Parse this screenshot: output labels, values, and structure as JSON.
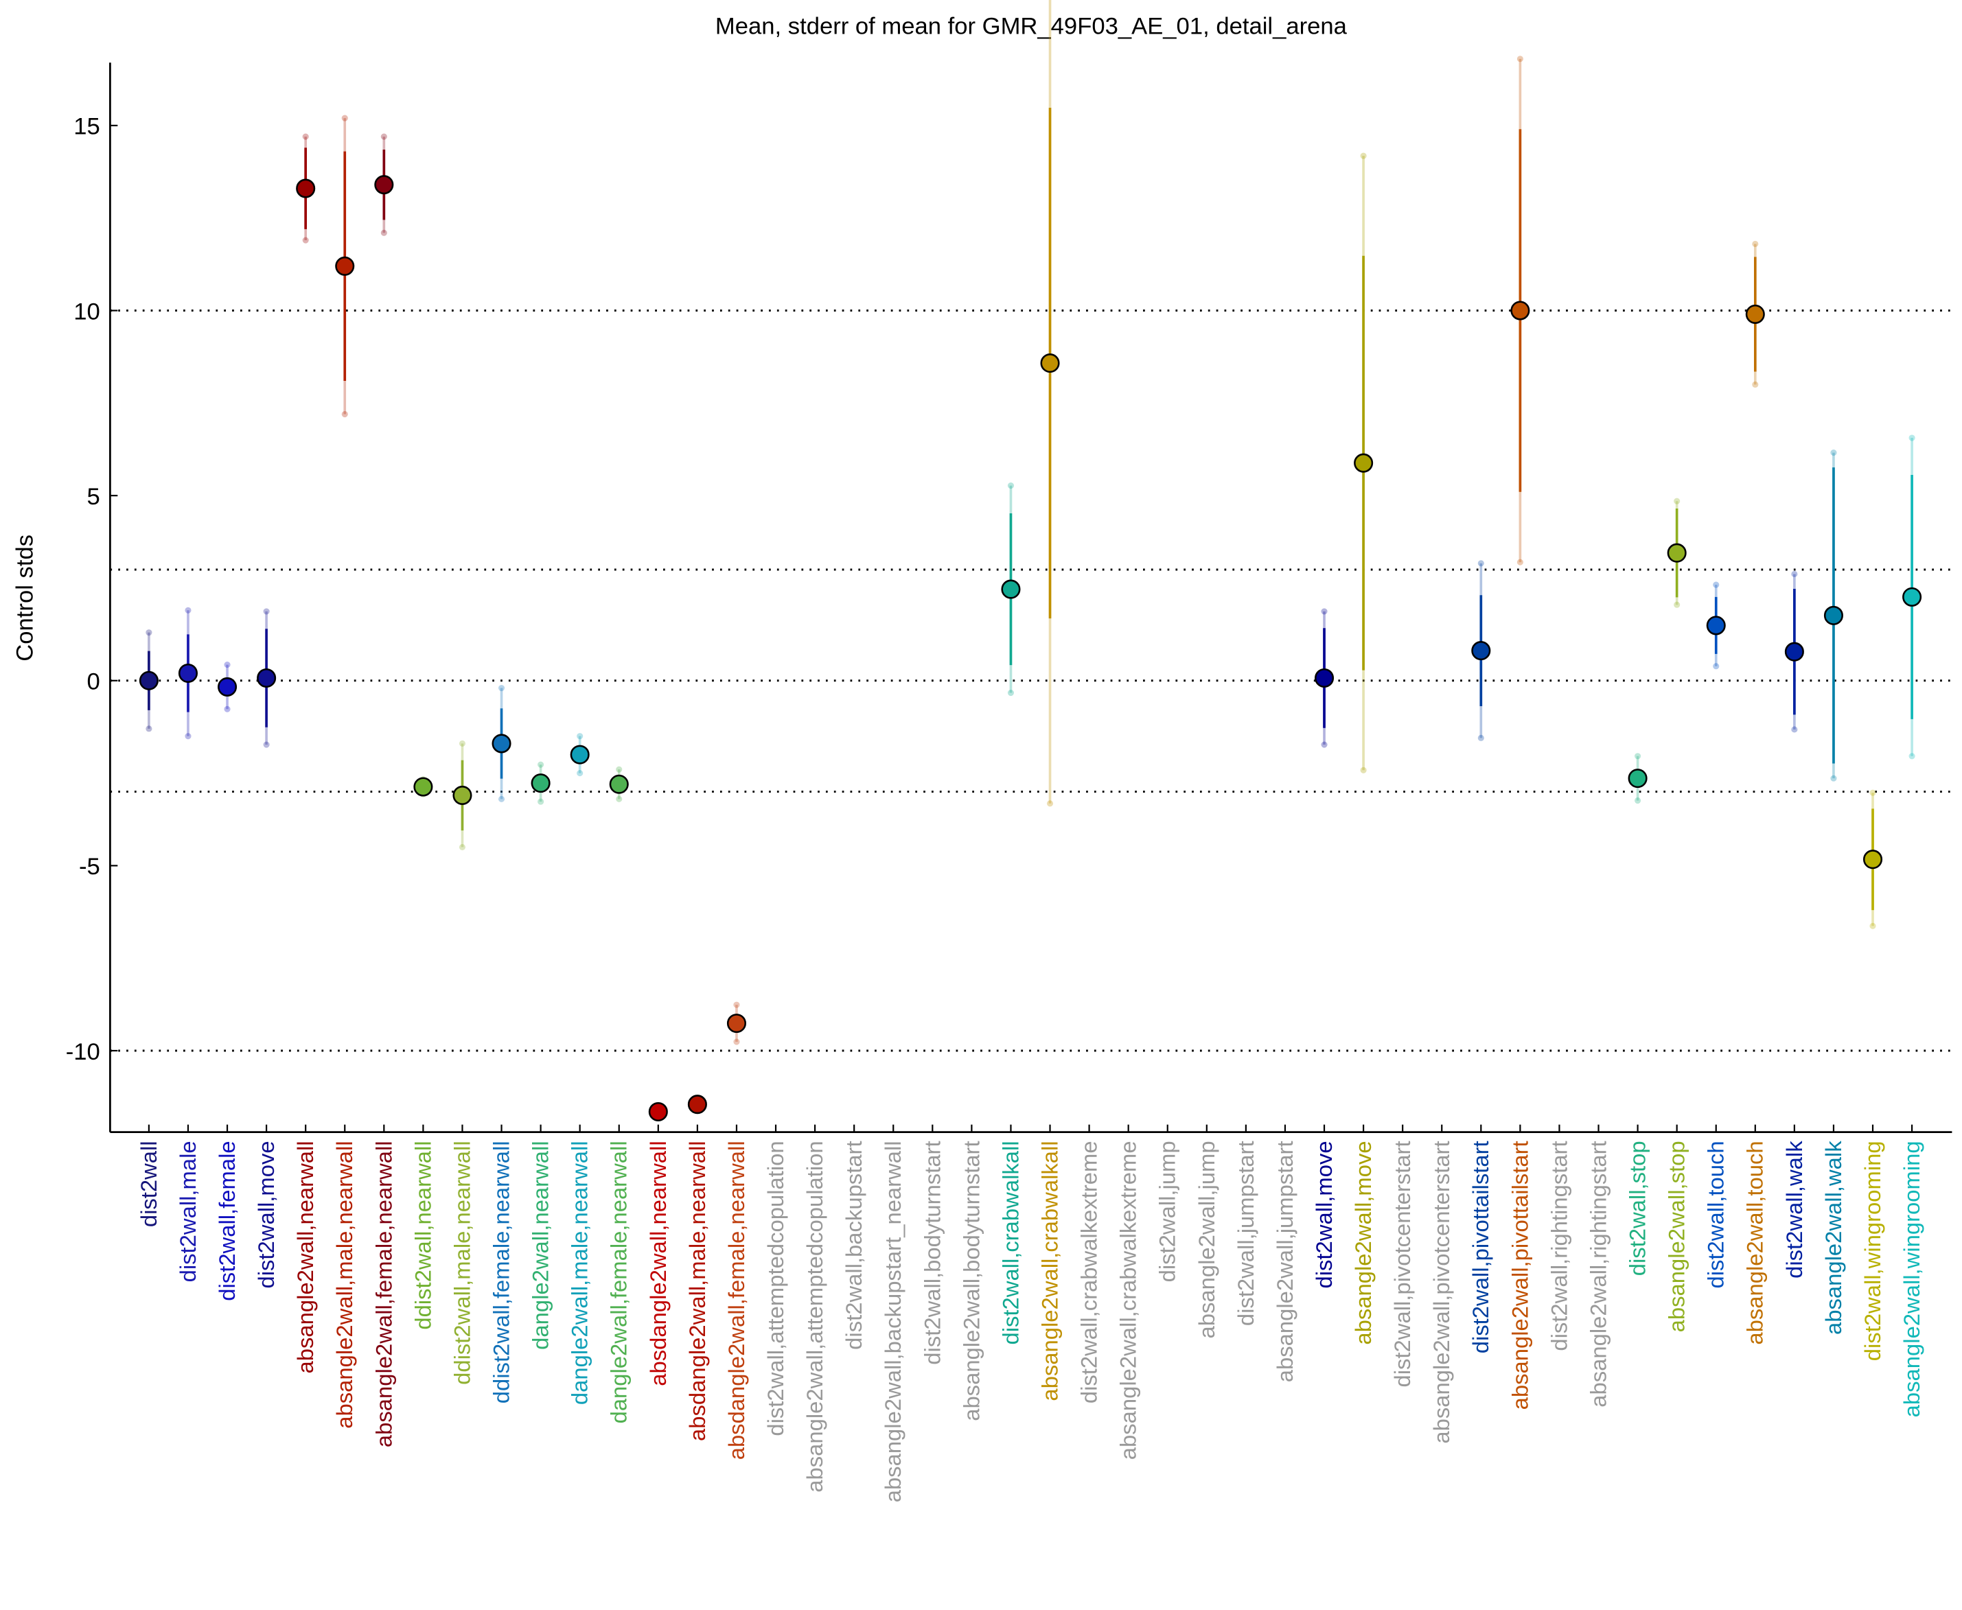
{
  "chart_data": {
    "type": "errorbar",
    "title": "Mean, stderr of mean for GMR_49F03_AE_01, detail_arena",
    "y_label": "Control stds",
    "categories": [
      "dist2wall",
      "dist2wall,male",
      "dist2wall,female",
      "dist2wall,move",
      "absangle2wall,nearwall",
      "absangle2wall,male,nearwall",
      "absangle2wall,female,nearwall",
      "ddist2wall,nearwall",
      "ddist2wall,male,nearwall",
      "ddist2wall,female,nearwall",
      "dangle2wall,nearwall",
      "dangle2wall,male,nearwall",
      "dangle2wall,female,nearwall",
      "absdangle2wall,nearwall",
      "absdangle2wall,male,nearwall",
      "absdangle2wall,female,nearwall",
      "dist2wall,attemptedcopulation",
      "absangle2wall,attemptedcopulation",
      "dist2wall,backupstart",
      "absangle2wall,backupstart_nearwall",
      "dist2wall,bodyturnstart",
      "absangle2wall,bodyturnstart",
      "dist2wall,crabwalkall",
      "absangle2wall,crabwalkall",
      "dist2wall,crabwalkextreme",
      "absangle2wall,crabwalkextreme",
      "dist2wall,jump",
      "absangle2wall,jump",
      "dist2wall,jumpstart",
      "absangle2wall,jumpstart",
      "dist2wall,move",
      "absangle2wall,move",
      "dist2wall,pivotcenterstart",
      "absangle2wall,pivotcenterstart",
      "dist2wall,pivottailstart",
      "absangle2wall,pivottailstart",
      "dist2wall,rightingstart",
      "absangle2wall,rightingstart",
      "dist2wall,stop",
      "absangle2wall,stop",
      "dist2wall,touch",
      "absangle2wall,touch",
      "dist2wall,walk",
      "absangle2wall,walk",
      "dist2wall,wingrooming",
      "absangle2wall,wingrooming"
    ],
    "values": [
      0,
      0.2,
      -0.17,
      0.07,
      13.3,
      11.2,
      13.4,
      -2.87,
      -3.1,
      -1.7,
      -2.77,
      -2.0,
      -2.8,
      -11.65,
      -11.45,
      -9.26,
      null,
      null,
      null,
      null,
      null,
      null,
      2.47,
      8.58,
      null,
      null,
      null,
      null,
      null,
      null,
      0.07,
      5.88,
      null,
      null,
      0.81,
      10.0,
      null,
      null,
      -2.64,
      3.45,
      1.49,
      9.9,
      0.78,
      1.76,
      -4.83,
      2.26
    ],
    "errors": [
      0.8,
      1.05,
      0.2,
      1.33,
      1.1,
      3.1,
      0.95,
      0.1,
      0.95,
      0.95,
      0.2,
      0.2,
      0.15,
      0.1,
      0.1,
      0.2,
      null,
      null,
      null,
      null,
      null,
      null,
      2.05,
      6.9,
      null,
      null,
      null,
      null,
      null,
      null,
      1.35,
      5.6,
      null,
      null,
      1.5,
      4.9,
      null,
      null,
      0.2,
      1.2,
      0.77,
      1.55,
      1.7,
      4.0,
      1.37,
      3.3
    ],
    "spreads": [
      1.3,
      1.7,
      0.6,
      1.8,
      1.4,
      4.0,
      1.3,
      0.2,
      1.4,
      1.5,
      0.5,
      0.5,
      0.4,
      0.1,
      0.1,
      0.5,
      null,
      null,
      null,
      null,
      null,
      null,
      2.8,
      11.9,
      null,
      null,
      null,
      null,
      null,
      null,
      1.8,
      8.3,
      null,
      null,
      2.36,
      6.8,
      null,
      null,
      0.6,
      1.4,
      1.1,
      1.9,
      2.1,
      4.4,
      1.8,
      4.3
    ],
    "colors": [
      "#15157a",
      "#1818b0",
      "#1010c0",
      "#101090",
      "#990000",
      "#b32000",
      "#800010",
      "#70b030",
      "#90b030",
      "#1070b8",
      "#30b070",
      "#10a0b8",
      "#50b050",
      "#c00000",
      "#b01000",
      "#c04010",
      null,
      null,
      null,
      null,
      null,
      null,
      "#10a890",
      "#c09000",
      null,
      null,
      null,
      null,
      null,
      null,
      "#000090",
      "#a8a000",
      null,
      null,
      "#0040a0",
      "#c05000",
      null,
      null,
      "#20b080",
      "#90b020",
      "#0050c0",
      "#c07000",
      "#0020a0",
      "#0080a8",
      "#b8b000",
      "#10b8b8"
    ],
    "missing_color": "#999999",
    "ylim": [
      -12.2,
      16.7
    ],
    "yticks": [
      -10,
      -5,
      0,
      5,
      10,
      15
    ],
    "reference_lines": [
      -10,
      -3,
      0,
      3,
      10
    ]
  }
}
